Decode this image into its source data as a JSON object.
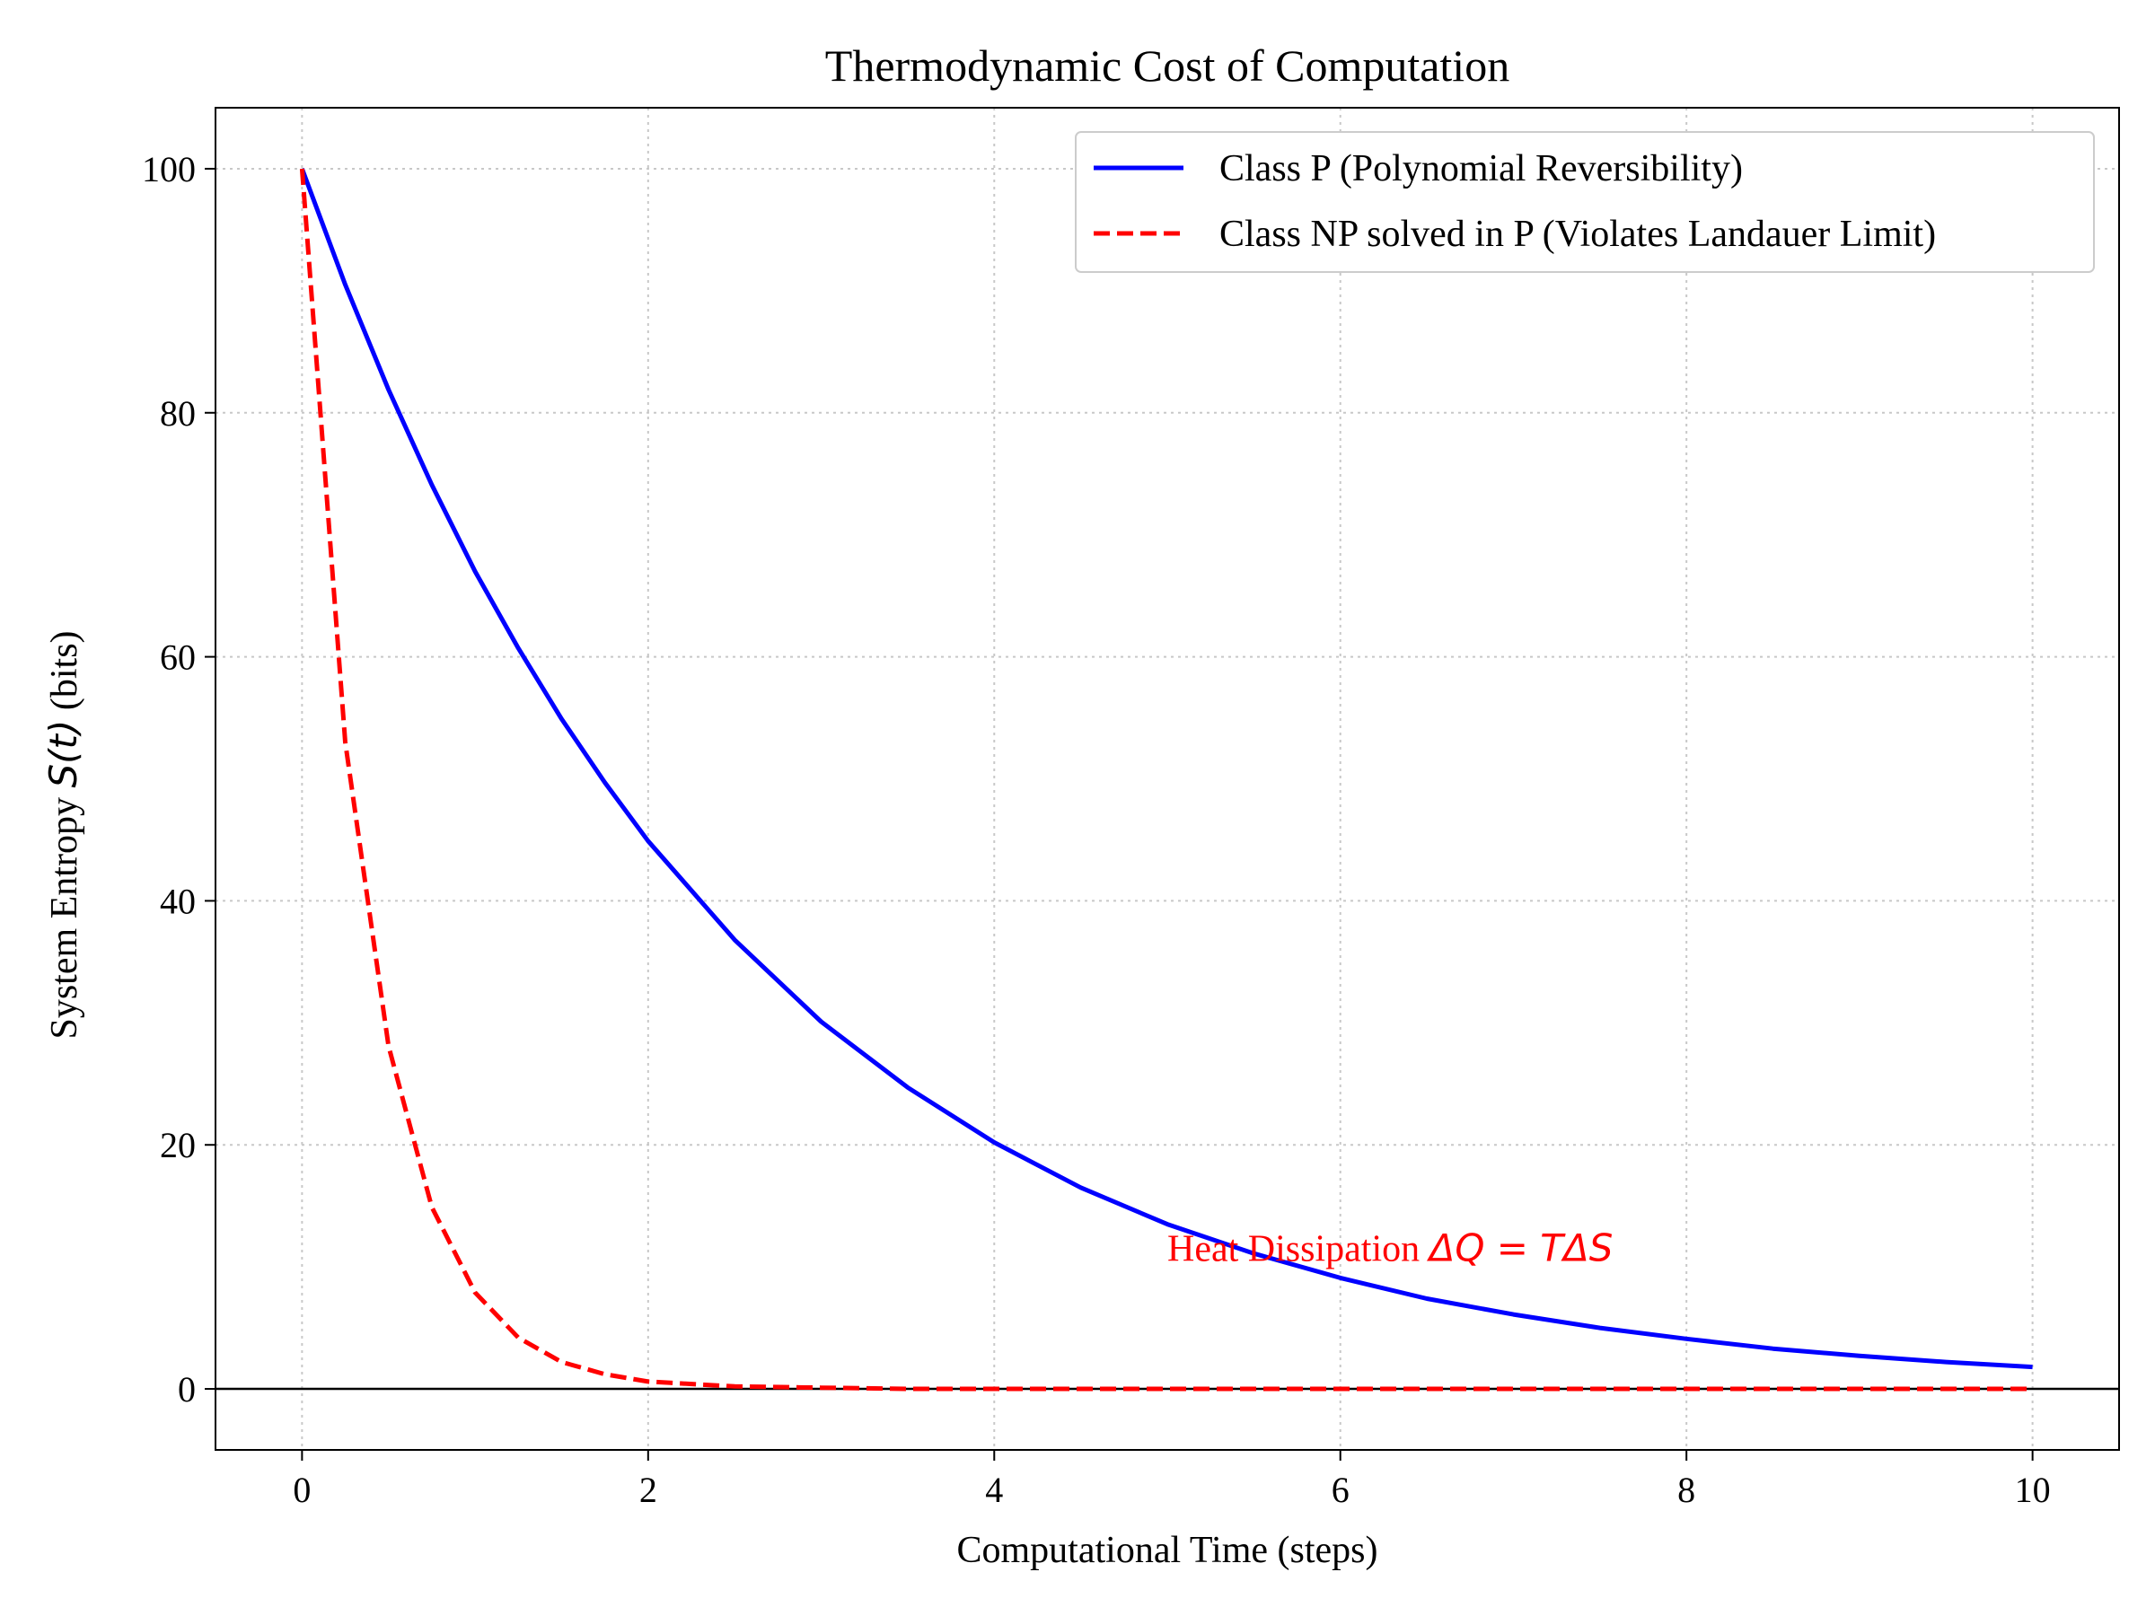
{
  "chart_data": {
    "type": "line",
    "title": "Thermodynamic Cost of Computation",
    "xlabel": "Computational Time (steps)",
    "ylabel": {
      "prefix": "System Entropy ",
      "math": "S(t)",
      "suffix": " (bits)"
    },
    "xlim": [
      -0.5,
      10.5
    ],
    "ylim": [
      -5,
      105
    ],
    "xticks": [
      0,
      2,
      4,
      6,
      8,
      10
    ],
    "yticks": [
      0,
      20,
      40,
      60,
      80,
      100
    ],
    "grid": true,
    "legend_position": "top-right",
    "baseline_y": 0,
    "x": [
      0,
      0.25,
      0.5,
      0.75,
      1,
      1.25,
      1.5,
      1.75,
      2,
      2.5,
      3,
      3.5,
      4,
      4.5,
      5,
      5.5,
      6,
      6.5,
      7,
      7.5,
      8,
      8.5,
      9,
      9.5,
      10
    ],
    "series": [
      {
        "name": "Class P (Polynomial Reversibility)",
        "color": "#0000ff",
        "style": "solid",
        "values": [
          100,
          90.5,
          81.9,
          74.1,
          67.0,
          60.7,
          54.9,
          49.7,
          44.9,
          36.8,
          30.1,
          24.7,
          20.2,
          16.5,
          13.5,
          11.1,
          9.1,
          7.4,
          6.1,
          5.0,
          4.1,
          3.3,
          2.7,
          2.2,
          1.8
        ]
      },
      {
        "name": "Class NP solved in P (Violates Landauer Limit)",
        "color": "#ff0000",
        "style": "dashed",
        "values": [
          100,
          53.0,
          28.1,
          14.9,
          7.9,
          4.2,
          2.2,
          1.2,
          0.6,
          0.2,
          0.1,
          0.0,
          0.0,
          0.0,
          0.0,
          0.0,
          0.0,
          0.0,
          0.0,
          0.0,
          0.0,
          0.0,
          0.0,
          0.0,
          0.0
        ]
      }
    ],
    "annotation": {
      "text": "Heat Dissipation ",
      "math": "ΔQ = TΔS",
      "x": 5.0,
      "y": 10.5,
      "color": "#ff0000"
    }
  }
}
